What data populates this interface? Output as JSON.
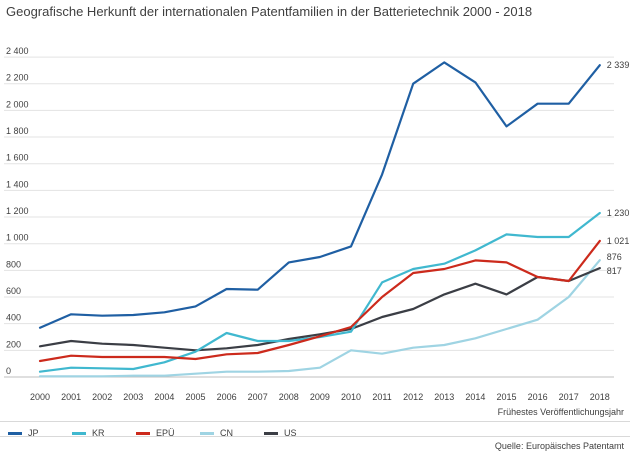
{
  "chart_data": {
    "type": "line",
    "title": "Geografische Herkunft der internationalen Patentfamilien in der Batterietechnik 2000 - 2018",
    "xlabel": "Frühestes Veröffentlichungsjahr",
    "ylabel": "",
    "ylim": [
      0,
      2500
    ],
    "yticks": [
      0,
      200,
      400,
      600,
      800,
      1000,
      1200,
      1400,
      1600,
      1800,
      2000,
      2200,
      2400
    ],
    "ytick_labels": [
      "0",
      "200",
      "400",
      "600",
      "800",
      "1 000",
      "1 200",
      "1 400",
      "1 600",
      "1 800",
      "2 000",
      "2 200",
      "2 400"
    ],
    "x": [
      "2000",
      "2001",
      "2002",
      "2003",
      "2004",
      "2005",
      "2006",
      "2007",
      "2008",
      "2009",
      "2010",
      "2011",
      "2012",
      "2013",
      "2014",
      "2015",
      "2016",
      "2017",
      "2018"
    ],
    "grid": true,
    "legend_position": "bottom",
    "series": [
      {
        "name": "JP",
        "color": "#1f5fa3",
        "values": [
          370,
          470,
          460,
          465,
          485,
          530,
          660,
          655,
          860,
          900,
          980,
          1520,
          2200,
          2360,
          2210,
          1880,
          2050,
          2050,
          2339
        ]
      },
      {
        "name": "KR",
        "color": "#40b8cf",
        "values": [
          40,
          70,
          65,
          60,
          110,
          190,
          330,
          270,
          270,
          300,
          340,
          710,
          810,
          850,
          950,
          1070,
          1050,
          1050,
          1230
        ]
      },
      {
        "name": "EPÜ",
        "color": "#cc2a1c",
        "values": [
          120,
          160,
          150,
          150,
          150,
          135,
          170,
          180,
          240,
          305,
          375,
          600,
          780,
          810,
          875,
          860,
          750,
          720,
          1021
        ]
      },
      {
        "name": "CN",
        "color": "#9fd4e3",
        "values": [
          5,
          5,
          5,
          10,
          10,
          25,
          40,
          40,
          45,
          70,
          200,
          175,
          220,
          240,
          290,
          360,
          430,
          600,
          876
        ]
      },
      {
        "name": "US",
        "color": "#3b3e45",
        "values": [
          230,
          270,
          250,
          240,
          220,
          200,
          215,
          240,
          285,
          320,
          360,
          450,
          510,
          620,
          700,
          620,
          750,
          720,
          817
        ]
      }
    ],
    "end_labels": [
      {
        "series": "JP",
        "text": "2 339"
      },
      {
        "series": "KR",
        "text": "1 230"
      },
      {
        "series": "EPÜ",
        "text": "1 021"
      },
      {
        "series": "CN",
        "text": "876"
      },
      {
        "series": "US",
        "text": "817"
      }
    ]
  },
  "footer": {
    "source": "Quelle: Europäisches Patentamt"
  }
}
